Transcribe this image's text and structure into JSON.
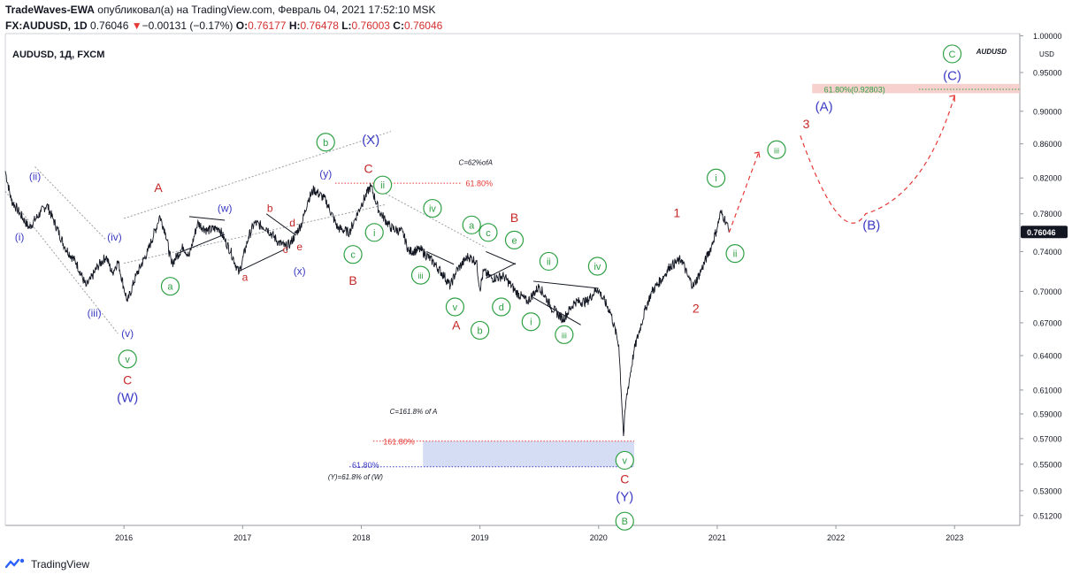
{
  "header": {
    "author": "TradeWaves-EWA",
    "published_text": "опубликовал(а) на TradingView.com, Февраль 04, 2021 17:52:10 MSK",
    "symbol": "FX:AUDUSD, 1D",
    "last": "0.76046",
    "change_arrow": "▼",
    "change": "−0.00131 (−0.17%)",
    "o_label": "O:",
    "o_value": "0.76177",
    "h_label": "H:",
    "h_value": "0.76478",
    "l_label": "L:",
    "l_value": "0.76003",
    "c_label": "C:",
    "c_value": "0.76046"
  },
  "footer": {
    "brand": "TradingView",
    "logo_icon": "tradingview-logo-icon"
  },
  "colors": {
    "green": "#2ea043",
    "blue": "#3b3bc4",
    "red": "#c62828",
    "price_badge": "#131722"
  },
  "chart_data": {
    "type": "line",
    "title": "AUDUSD, 1Д, FXCM",
    "watermark": "AUDUSD",
    "y_ticks": [
      1.0,
      0.95,
      0.9,
      0.86,
      0.82,
      0.78,
      0.74,
      0.7,
      0.67,
      0.64,
      0.61,
      0.59,
      0.57,
      0.55,
      0.53,
      0.512
    ],
    "y_tick_labels": [
      "1.00000",
      "0.95000",
      "0.90000",
      "0.86000",
      "0.82000",
      "0.78000",
      "0.74000",
      "0.70000",
      "0.67000",
      "0.64000",
      "0.61000",
      "0.59000",
      "0.57000",
      "0.55000",
      "0.53000",
      "0.51200"
    ],
    "y_unit_label": "USD",
    "x_ticks": [
      "2016",
      "2017",
      "2018",
      "2019",
      "2020",
      "2021",
      "2022",
      "2023"
    ],
    "current_price": "0.76046",
    "series": [
      {
        "values": [
          [
            2015.0,
            0.828
          ],
          [
            2015.05,
            0.795
          ],
          [
            2015.1,
            0.785
          ],
          [
            2015.2,
            0.765
          ],
          [
            2015.3,
            0.782
          ],
          [
            2015.35,
            0.79
          ],
          [
            2015.4,
            0.775
          ],
          [
            2015.5,
            0.745
          ],
          [
            2015.6,
            0.728
          ],
          [
            2015.68,
            0.705
          ],
          [
            2015.72,
            0.712
          ],
          [
            2015.78,
            0.725
          ],
          [
            2015.85,
            0.735
          ],
          [
            2015.9,
            0.718
          ],
          [
            2015.95,
            0.73
          ],
          [
            2016.0,
            0.703
          ],
          [
            2016.03,
            0.69
          ],
          [
            2016.1,
            0.715
          ],
          [
            2016.2,
            0.74
          ],
          [
            2016.28,
            0.768
          ],
          [
            2016.3,
            0.778
          ],
          [
            2016.35,
            0.76
          ],
          [
            2016.4,
            0.727
          ],
          [
            2016.5,
            0.745
          ],
          [
            2016.55,
            0.735
          ],
          [
            2016.62,
            0.77
          ],
          [
            2016.7,
            0.762
          ],
          [
            2016.8,
            0.765
          ],
          [
            2016.85,
            0.752
          ],
          [
            2016.9,
            0.74
          ],
          [
            2016.97,
            0.718
          ],
          [
            2017.05,
            0.755
          ],
          [
            2017.1,
            0.77
          ],
          [
            2017.2,
            0.765
          ],
          [
            2017.3,
            0.75
          ],
          [
            2017.36,
            0.745
          ],
          [
            2017.4,
            0.748
          ],
          [
            2017.5,
            0.77
          ],
          [
            2017.55,
            0.795
          ],
          [
            2017.6,
            0.807
          ],
          [
            2017.7,
            0.795
          ],
          [
            2017.8,
            0.765
          ],
          [
            2017.9,
            0.76
          ],
          [
            2017.95,
            0.775
          ],
          [
            2018.0,
            0.79
          ],
          [
            2018.08,
            0.811
          ],
          [
            2018.15,
            0.783
          ],
          [
            2018.25,
            0.765
          ],
          [
            2018.35,
            0.76
          ],
          [
            2018.4,
            0.74
          ],
          [
            2018.5,
            0.742
          ],
          [
            2018.6,
            0.73
          ],
          [
            2018.7,
            0.715
          ],
          [
            2018.75,
            0.705
          ],
          [
            2018.8,
            0.72
          ],
          [
            2018.9,
            0.735
          ],
          [
            2018.97,
            0.73
          ],
          [
            2019.0,
            0.702
          ],
          [
            2019.03,
            0.72
          ],
          [
            2019.1,
            0.713
          ],
          [
            2019.2,
            0.715
          ],
          [
            2019.3,
            0.7
          ],
          [
            2019.4,
            0.69
          ],
          [
            2019.5,
            0.705
          ],
          [
            2019.6,
            0.685
          ],
          [
            2019.7,
            0.673
          ],
          [
            2019.8,
            0.69
          ],
          [
            2019.9,
            0.69
          ],
          [
            2019.99,
            0.703
          ],
          [
            2020.1,
            0.68
          ],
          [
            2020.17,
            0.65
          ],
          [
            2020.21,
            0.572
          ],
          [
            2020.23,
            0.6
          ],
          [
            2020.3,
            0.645
          ],
          [
            2020.4,
            0.685
          ],
          [
            2020.45,
            0.7
          ],
          [
            2020.55,
            0.715
          ],
          [
            2020.6,
            0.725
          ],
          [
            2020.7,
            0.732
          ],
          [
            2020.75,
            0.715
          ],
          [
            2020.8,
            0.705
          ],
          [
            2020.85,
            0.717
          ],
          [
            2020.95,
            0.745
          ],
          [
            2021.0,
            0.765
          ],
          [
            2021.03,
            0.782
          ],
          [
            2021.06,
            0.775
          ],
          [
            2021.08,
            0.77
          ],
          [
            2021.1,
            0.76
          ]
        ]
      }
    ],
    "projection": [
      [
        2021.1,
        0.76
      ],
      [
        2021.35,
        0.85
      ],
      [
        2021.7,
        0.87
      ],
      [
        2022.25,
        0.78
      ],
      [
        2022.7,
        0.86
      ],
      [
        2023.0,
        0.92
      ]
    ],
    "annotations": {
      "c_62": "C=62%ofA",
      "fib_top": "61.80%",
      "c_161": "C=161.8% of A",
      "fib_161": "161.80%",
      "fib_618": "61.80%",
      "y_618": "(Y)=61.8% of (W)",
      "target": "61.80%(0.92803)"
    },
    "wave_labels": [
      {
        "t": "(ii)",
        "c": "blue",
        "x": 2015.25,
        "y": 0.822,
        "circ": false
      },
      {
        "t": "(i)",
        "c": "blue",
        "x": 2015.12,
        "y": 0.755,
        "circ": false
      },
      {
        "t": "(iv)",
        "c": "blue",
        "x": 2015.92,
        "y": 0.755,
        "circ": false
      },
      {
        "t": "(iii)",
        "c": "blue",
        "x": 2015.75,
        "y": 0.679,
        "circ": false
      },
      {
        "t": "(v)",
        "c": "blue",
        "x": 2016.03,
        "y": 0.66,
        "circ": false
      },
      {
        "t": "v",
        "c": "green",
        "x": 2016.03,
        "y": 0.637,
        "circ": true
      },
      {
        "t": "C",
        "c": "red",
        "x": 2016.03,
        "y": 0.618,
        "circ": false
      },
      {
        "t": "(W)",
        "c": "blue",
        "x": 2016.03,
        "y": 0.603,
        "circ": false
      },
      {
        "t": "A",
        "c": "red",
        "x": 2016.29,
        "y": 0.808,
        "circ": false
      },
      {
        "t": "a",
        "c": "green",
        "x": 2016.39,
        "y": 0.705,
        "circ": true
      },
      {
        "t": "(w)",
        "c": "blue",
        "x": 2016.85,
        "y": 0.786,
        "circ": false
      },
      {
        "t": "b",
        "c": "red",
        "x": 2017.23,
        "y": 0.786,
        "circ": false
      },
      {
        "t": "d",
        "c": "red",
        "x": 2017.42,
        "y": 0.77,
        "circ": false
      },
      {
        "t": "a",
        "c": "red",
        "x": 2017.02,
        "y": 0.714,
        "circ": false
      },
      {
        "t": "c",
        "c": "red",
        "x": 2017.36,
        "y": 0.742,
        "circ": false
      },
      {
        "t": "e",
        "c": "red",
        "x": 2017.48,
        "y": 0.745,
        "circ": false
      },
      {
        "t": "(x)",
        "c": "blue",
        "x": 2017.48,
        "y": 0.72,
        "circ": false
      },
      {
        "t": "(y)",
        "c": "blue",
        "x": 2017.7,
        "y": 0.825,
        "circ": false
      },
      {
        "t": "b",
        "c": "green",
        "x": 2017.7,
        "y": 0.862,
        "circ": true
      },
      {
        "t": "(X)",
        "c": "blue",
        "x": 2018.08,
        "y": 0.864,
        "circ": false
      },
      {
        "t": "C",
        "c": "red",
        "x": 2018.06,
        "y": 0.83,
        "circ": false
      },
      {
        "t": "ii",
        "c": "green",
        "x": 2018.18,
        "y": 0.812,
        "circ": true
      },
      {
        "t": "i",
        "c": "green",
        "x": 2018.11,
        "y": 0.76,
        "circ": true
      },
      {
        "t": "c",
        "c": "green",
        "x": 2017.93,
        "y": 0.737,
        "circ": true
      },
      {
        "t": "B",
        "c": "red",
        "x": 2017.93,
        "y": 0.71,
        "circ": false
      },
      {
        "t": "iv",
        "c": "green",
        "x": 2018.6,
        "y": 0.786,
        "circ": true
      },
      {
        "t": "iii",
        "c": "green",
        "x": 2018.5,
        "y": 0.716,
        "circ": true
      },
      {
        "t": "v",
        "c": "green",
        "x": 2018.79,
        "y": 0.685,
        "circ": true
      },
      {
        "t": "A",
        "c": "red",
        "x": 2018.8,
        "y": 0.667,
        "circ": false
      },
      {
        "t": "a",
        "c": "green",
        "x": 2018.93,
        "y": 0.768,
        "circ": true
      },
      {
        "t": "c",
        "c": "green",
        "x": 2019.07,
        "y": 0.76,
        "circ": true
      },
      {
        "t": "B",
        "c": "red",
        "x": 2019.29,
        "y": 0.775,
        "circ": false
      },
      {
        "t": "e",
        "c": "green",
        "x": 2019.29,
        "y": 0.752,
        "circ": true
      },
      {
        "t": "b",
        "c": "green",
        "x": 2019.0,
        "y": 0.663,
        "circ": true
      },
      {
        "t": "d",
        "c": "green",
        "x": 2019.18,
        "y": 0.685,
        "circ": true
      },
      {
        "t": "ii",
        "c": "green",
        "x": 2019.58,
        "y": 0.73,
        "circ": true
      },
      {
        "t": "iv",
        "c": "green",
        "x": 2019.99,
        "y": 0.725,
        "circ": true
      },
      {
        "t": "i",
        "c": "green",
        "x": 2019.43,
        "y": 0.671,
        "circ": true
      },
      {
        "t": "iii",
        "c": "green",
        "x": 2019.71,
        "y": 0.659,
        "circ": true
      },
      {
        "t": "v",
        "c": "green",
        "x": 2020.22,
        "y": 0.553,
        "circ": true
      },
      {
        "t": "C",
        "c": "red",
        "x": 2020.22,
        "y": 0.538,
        "circ": false
      },
      {
        "t": "(Y)",
        "c": "blue",
        "x": 2020.22,
        "y": 0.525,
        "circ": false
      },
      {
        "t": "B",
        "c": "green",
        "x": 2020.22,
        "y": 0.508,
        "circ": true
      },
      {
        "t": "1",
        "c": "red",
        "x": 2020.66,
        "y": 0.78,
        "circ": false
      },
      {
        "t": "2",
        "c": "red",
        "x": 2020.82,
        "y": 0.683,
        "circ": false
      },
      {
        "t": "i",
        "c": "green",
        "x": 2020.99,
        "y": 0.82,
        "circ": true
      },
      {
        "t": "ii",
        "c": "green",
        "x": 2021.15,
        "y": 0.738,
        "circ": true
      },
      {
        "t": "iii",
        "c": "green",
        "x": 2021.5,
        "y": 0.853,
        "circ": true
      },
      {
        "t": "3",
        "c": "red",
        "x": 2021.75,
        "y": 0.883,
        "circ": false
      },
      {
        "t": "(A)",
        "c": "blue",
        "x": 2021.9,
        "y": 0.905,
        "circ": false
      },
      {
        "t": "(B)",
        "c": "blue",
        "x": 2022.3,
        "y": 0.767,
        "circ": false
      },
      {
        "t": "(C)",
        "c": "blue",
        "x": 2022.98,
        "y": 0.945,
        "circ": false
      },
      {
        "t": "C",
        "c": "green",
        "x": 2022.98,
        "y": 0.975,
        "circ": true
      }
    ]
  }
}
